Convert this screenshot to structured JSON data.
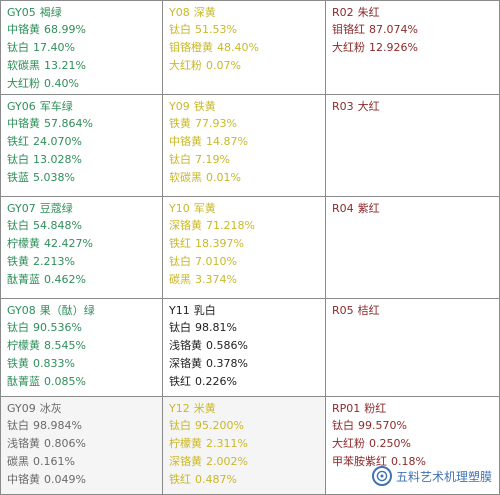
{
  "cells": [
    [
      {
        "code": "GY05",
        "name": "褐绿",
        "color": "green",
        "items": [
          {
            "n": "中铬黄",
            "v": "68.99%"
          },
          {
            "n": "钛白",
            "v": "17.40%"
          },
          {
            "n": "软碳黑",
            "v": "13.21%"
          },
          {
            "n": "大红粉",
            "v": "0.40%"
          }
        ]
      },
      {
        "code": "Y08",
        "name": "深黄",
        "color": "yellow",
        "items": [
          {
            "n": "钛白",
            "v": "51.53%"
          },
          {
            "n": "钼铬橙黄",
            "v": "48.40%"
          },
          {
            "n": "大红粉",
            "v": "0.07%"
          }
        ]
      },
      {
        "code": "R02",
        "name": "朱红",
        "color": "red",
        "items": [
          {
            "n": "钼铬红",
            "v": "87.074%"
          },
          {
            "n": "大红粉",
            "v": "12.926%"
          }
        ]
      }
    ],
    [
      {
        "code": "GY06",
        "name": "军车绿",
        "color": "green",
        "items": [
          {
            "n": "中铬黄",
            "v": "57.864%"
          },
          {
            "n": "铁红",
            "v": "24.070%"
          },
          {
            "n": "钛白",
            "v": "13.028%"
          },
          {
            "n": "铁蓝",
            "v": "5.038%"
          }
        ]
      },
      {
        "code": "Y09",
        "name": "铁黄",
        "color": "yellow",
        "items": [
          {
            "n": "铁黄",
            "v": "77.93%"
          },
          {
            "n": "中铬黄",
            "v": "14.87%"
          },
          {
            "n": "钛白",
            "v": "7.19%"
          },
          {
            "n": "软碳黑",
            "v": "0.01%"
          }
        ]
      },
      {
        "code": "R03",
        "name": "大红",
        "color": "red",
        "items": []
      }
    ],
    [
      {
        "code": "GY07",
        "name": "豆蔻绿",
        "color": "green",
        "items": [
          {
            "n": "钛白",
            "v": "54.848%"
          },
          {
            "n": "柠檬黄",
            "v": "42.427%"
          },
          {
            "n": "铁黄",
            "v": "2.213%"
          },
          {
            "n": "酞菁蓝",
            "v": "0.462%"
          }
        ]
      },
      {
        "code": "Y10",
        "name": "军黄",
        "color": "yellow",
        "items": [
          {
            "n": "深铬黄",
            "v": "71.218%"
          },
          {
            "n": "铁红",
            "v": "18.397%"
          },
          {
            "n": "钛白",
            "v": "7.010%"
          },
          {
            "n": "碳黑",
            "v": "3.374%"
          }
        ]
      },
      {
        "code": "R04",
        "name": "紫红",
        "color": "red",
        "items": []
      }
    ],
    [
      {
        "code": "GY08",
        "name": "果（酞）绿",
        "color": "green",
        "items": [
          {
            "n": "钛白",
            "v": "90.536%"
          },
          {
            "n": "柠檬黄",
            "v": "8.545%"
          },
          {
            "n": "铁黄",
            "v": "0.833%"
          },
          {
            "n": "酞菁蓝",
            "v": "0.085%"
          }
        ]
      },
      {
        "code": "Y11",
        "name": "乳白",
        "color": "dark",
        "items": [
          {
            "n": "钛白",
            "v": "98.81%"
          },
          {
            "n": "浅铬黄",
            "v": "0.586%"
          },
          {
            "n": "深铬黄",
            "v": "0.378%"
          },
          {
            "n": "铁红",
            "v": "0.226%"
          }
        ]
      },
      {
        "code": "R05",
        "name": "桔红",
        "color": "red",
        "items": []
      }
    ],
    [
      {
        "code": "GY09",
        "name": "冰灰",
        "color": "grey",
        "items": [
          {
            "n": "钛白",
            "v": "98.984%"
          },
          {
            "n": "浅铬黄",
            "v": "0.806%"
          },
          {
            "n": "碳黑",
            "v": "0.161%"
          },
          {
            "n": "中铬黄",
            "v": "0.049%"
          }
        ]
      },
      {
        "code": "Y12",
        "name": "米黄",
        "color": "yellow",
        "items": [
          {
            "n": "钛白",
            "v": "95.200%"
          },
          {
            "n": "柠檬黄",
            "v": "2.311%"
          },
          {
            "n": "深铬黄",
            "v": "2.002%"
          },
          {
            "n": "铁红",
            "v": "0.487%"
          }
        ]
      },
      {
        "code": "RP01",
        "name": "粉红",
        "color": "red",
        "items": [
          {
            "n": "钛白",
            "v": "99.570%"
          },
          {
            "n": "大红粉",
            "v": "0.250%"
          },
          {
            "n": "甲苯胺紫红",
            "v": "0.18%"
          }
        ]
      }
    ]
  ],
  "watermark": {
    "text": "五料艺术机理塑膜"
  },
  "colors": {
    "green": "#2f8f5a",
    "yellow": "#c9b829",
    "red": "#8c2b2b",
    "dark": "#222222",
    "grey": "#6a6a6a",
    "border": "#8a8a8a"
  }
}
